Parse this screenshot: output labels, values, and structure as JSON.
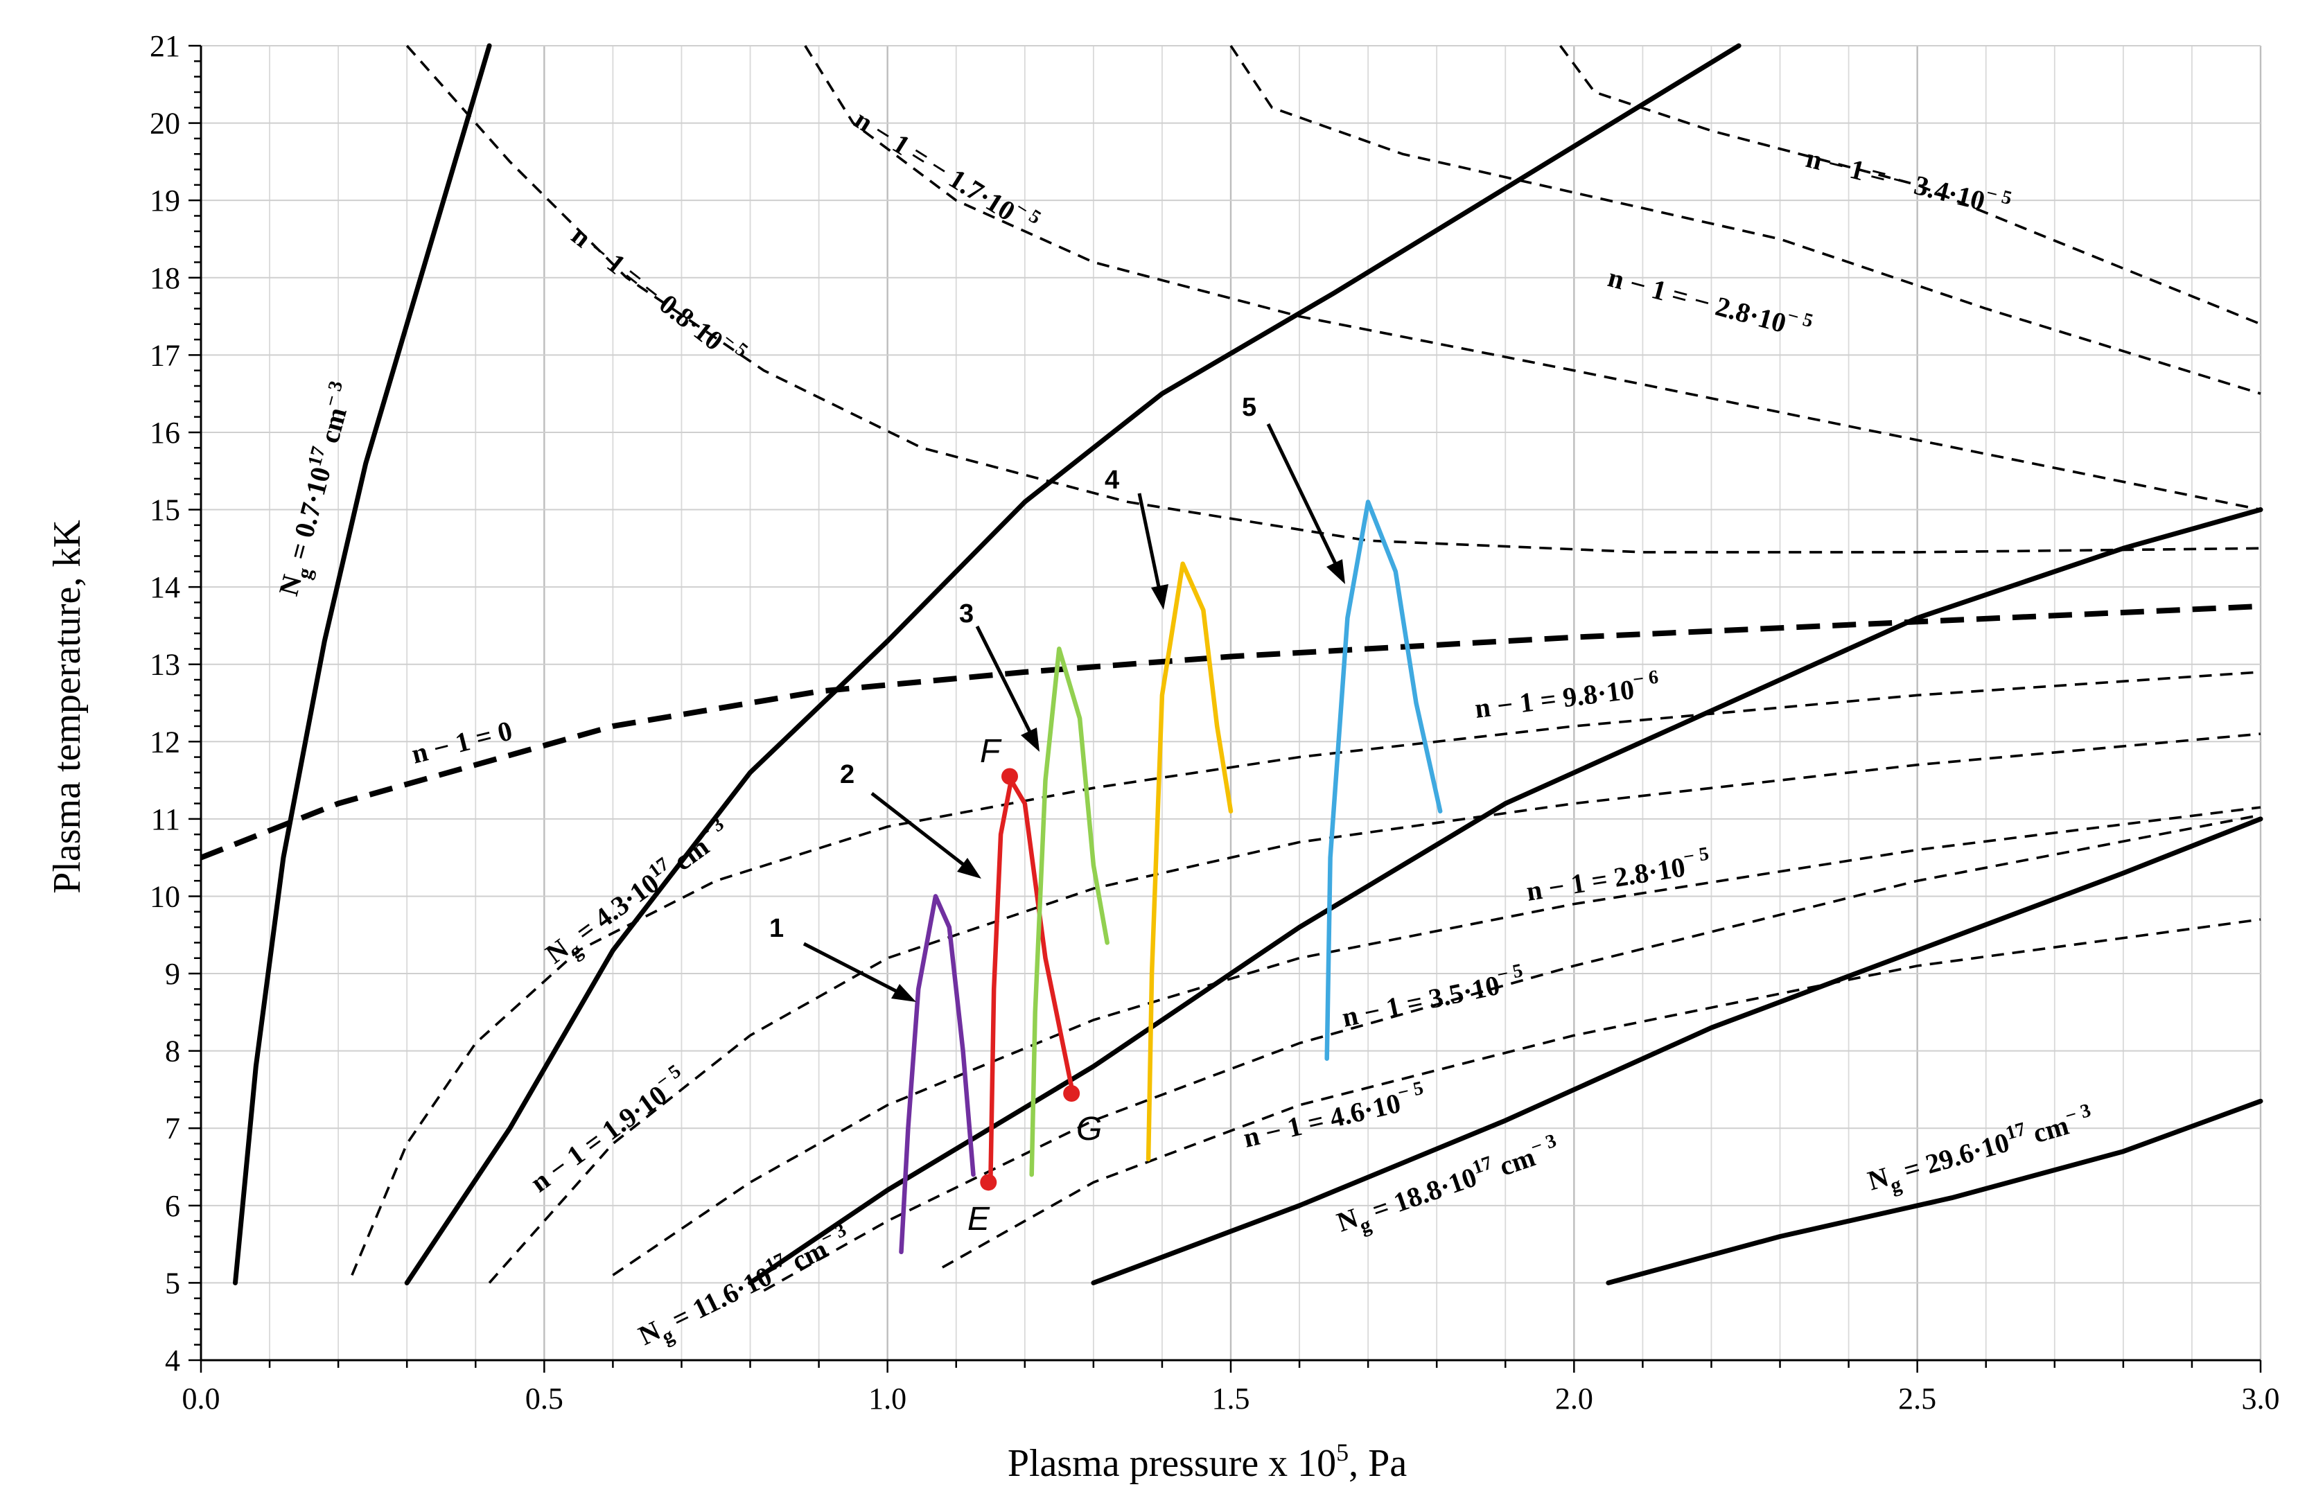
{
  "chart_data": {
    "type": "line",
    "title": "",
    "xlabel": "Plasma pressure x 10",
    "xlabel_sup": "5",
    "xlabel_unit": ", Pa",
    "ylabel": "Plasma temperature, kK",
    "xlim": [
      0.0,
      3.0
    ],
    "ylim": [
      4,
      21
    ],
    "xticks": [
      0.0,
      0.5,
      1.0,
      1.5,
      2.0,
      2.5,
      3.0
    ],
    "xtick_labels": [
      "0.0",
      "0.5",
      "1.0",
      "1.5",
      "2.0",
      "2.5",
      "3.0"
    ],
    "yticks": [
      4,
      5,
      6,
      7,
      8,
      9,
      10,
      11,
      12,
      13,
      14,
      15,
      16,
      17,
      18,
      19,
      20,
      21
    ],
    "ytick_labels": [
      "4",
      "5",
      "6",
      "7",
      "8",
      "9",
      "10",
      "11",
      "12",
      "13",
      "14",
      "15",
      "16",
      "17",
      "18",
      "19",
      "20",
      "21"
    ],
    "grid": true,
    "series": [
      {
        "name": "Ng = 0.7·10^17 cm^-3",
        "style": "solid",
        "color": "#000000",
        "points": [
          [
            0.05,
            5
          ],
          [
            0.08,
            7.8
          ],
          [
            0.12,
            10.5
          ],
          [
            0.18,
            13.3
          ],
          [
            0.24,
            15.6
          ],
          [
            0.32,
            18
          ],
          [
            0.42,
            21
          ]
        ]
      },
      {
        "name": "Ng = 4.3·10^17 cm^-3",
        "style": "solid",
        "color": "#000000",
        "points": [
          [
            0.3,
            5
          ],
          [
            0.45,
            7
          ],
          [
            0.6,
            9.3
          ],
          [
            0.8,
            11.6
          ],
          [
            1.0,
            13.3
          ],
          [
            1.2,
            15.1
          ],
          [
            1.4,
            16.5
          ],
          [
            1.65,
            17.8
          ],
          [
            2.0,
            19.7
          ],
          [
            2.24,
            21
          ]
        ]
      },
      {
        "name": "Ng = 11.6·10^17 cm^-3",
        "style": "solid",
        "color": "#000000",
        "points": [
          [
            0.8,
            5
          ],
          [
            1.0,
            6.2
          ],
          [
            1.3,
            7.8
          ],
          [
            1.6,
            9.6
          ],
          [
            1.9,
            11.2
          ],
          [
            2.2,
            12.4
          ],
          [
            2.5,
            13.6
          ],
          [
            2.8,
            14.5
          ],
          [
            3.0,
            15
          ]
        ]
      },
      {
        "name": "Ng = 18.8·10^17 cm^-3",
        "style": "solid",
        "color": "#000000",
        "points": [
          [
            1.3,
            5
          ],
          [
            1.6,
            6
          ],
          [
            1.9,
            7.1
          ],
          [
            2.2,
            8.3
          ],
          [
            2.5,
            9.3
          ],
          [
            2.8,
            10.3
          ],
          [
            3.0,
            11
          ]
        ]
      },
      {
        "name": "Ng = 29.6·10^17 cm^-3",
        "style": "solid",
        "color": "#000000",
        "points": [
          [
            2.05,
            5
          ],
          [
            2.3,
            5.6
          ],
          [
            2.55,
            6.1
          ],
          [
            2.8,
            6.7
          ],
          [
            3.0,
            7.35
          ]
        ]
      },
      {
        "name": "n-1 = 0",
        "style": "thick-dash",
        "color": "#000000",
        "points": [
          [
            0.0,
            10.5
          ],
          [
            0.2,
            11.2
          ],
          [
            0.4,
            11.7
          ],
          [
            0.6,
            12.2
          ],
          [
            0.9,
            12.65
          ],
          [
            1.2,
            12.9
          ],
          [
            1.5,
            13.1
          ],
          [
            2.0,
            13.35
          ],
          [
            2.5,
            13.55
          ],
          [
            3.0,
            13.75
          ]
        ]
      },
      {
        "name": "n-1 = 9.8·10^-6",
        "style": "dash",
        "color": "#000000",
        "points": [
          [
            0.22,
            5.1
          ],
          [
            0.3,
            6.8
          ],
          [
            0.4,
            8.1
          ],
          [
            0.55,
            9.3
          ],
          [
            0.75,
            10.2
          ],
          [
            1.0,
            10.9
          ],
          [
            1.3,
            11.4
          ],
          [
            1.6,
            11.8
          ],
          [
            2.0,
            12.2
          ],
          [
            2.5,
            12.6
          ],
          [
            3.0,
            12.9
          ]
        ]
      },
      {
        "name": "n-1 = 1.9·10^-5",
        "style": "dash",
        "color": "#000000",
        "points": [
          [
            0.42,
            5
          ],
          [
            0.6,
            6.8
          ],
          [
            0.8,
            8.2
          ],
          [
            1.0,
            9.2
          ],
          [
            1.3,
            10.1
          ],
          [
            1.6,
            10.7
          ],
          [
            2.0,
            11.2
          ],
          [
            2.5,
            11.7
          ],
          [
            3.0,
            12.1
          ]
        ]
      },
      {
        "name": "n-1 = 2.8·10^-5",
        "style": "dash",
        "color": "#000000",
        "points": [
          [
            0.6,
            5.1
          ],
          [
            0.8,
            6.3
          ],
          [
            1.0,
            7.3
          ],
          [
            1.3,
            8.4
          ],
          [
            1.6,
            9.2
          ],
          [
            2.0,
            9.9
          ],
          [
            2.5,
            10.6
          ],
          [
            3.0,
            11.15
          ]
        ]
      },
      {
        "name": "n-1 = 3.5·10^-5",
        "style": "dash",
        "color": "#000000",
        "points": [
          [
            0.82,
            4.9
          ],
          [
            1.0,
            5.8
          ],
          [
            1.3,
            7.1
          ],
          [
            1.6,
            8.1
          ],
          [
            2.0,
            9.1
          ],
          [
            2.5,
            10.2
          ],
          [
            3.0,
            11.05
          ]
        ]
      },
      {
        "name": "n-1 = 4.6·10^-5",
        "style": "dash",
        "color": "#000000",
        "points": [
          [
            1.08,
            5.2
          ],
          [
            1.3,
            6.3
          ],
          [
            1.6,
            7.3
          ],
          [
            2.0,
            8.2
          ],
          [
            2.5,
            9.1
          ],
          [
            3.0,
            9.7
          ]
        ]
      },
      {
        "name": "n-1 = -0.8·10^-5",
        "style": "dash",
        "color": "#000000",
        "points": [
          [
            0.3,
            21
          ],
          [
            0.45,
            19.5
          ],
          [
            0.62,
            18
          ],
          [
            0.82,
            16.8
          ],
          [
            1.05,
            15.8
          ],
          [
            1.35,
            15.1
          ],
          [
            1.7,
            14.6
          ],
          [
            2.1,
            14.45
          ],
          [
            2.5,
            14.45
          ],
          [
            3.0,
            14.5
          ]
        ]
      },
      {
        "name": "n-1 = -1.7·10^-5",
        "style": "dash",
        "color": "#000000",
        "points": [
          [
            0.88,
            21
          ],
          [
            0.95,
            20
          ],
          [
            1.1,
            19
          ],
          [
            1.3,
            18.2
          ],
          [
            1.6,
            17.5
          ],
          [
            2.0,
            16.8
          ],
          [
            2.5,
            15.9
          ],
          [
            3.0,
            15
          ]
        ]
      },
      {
        "name": "n-1 = -2.8·10^-5",
        "style": "dash",
        "color": "#000000",
        "points": [
          [
            1.5,
            21
          ],
          [
            1.56,
            20.2
          ],
          [
            1.75,
            19.6
          ],
          [
            2.0,
            19.1
          ],
          [
            2.3,
            18.5
          ],
          [
            2.6,
            17.6
          ],
          [
            3.0,
            16.5
          ]
        ]
      },
      {
        "name": "n-1 = -3.4·10^-5",
        "style": "dash",
        "color": "#000000",
        "points": [
          [
            1.98,
            21
          ],
          [
            2.03,
            20.4
          ],
          [
            2.2,
            19.9
          ],
          [
            2.5,
            19.2
          ],
          [
            2.75,
            18.3
          ],
          [
            3.0,
            17.4
          ]
        ]
      },
      {
        "name": "1",
        "style": "color",
        "color": "#7030A0",
        "points": [
          [
            1.02,
            5.4
          ],
          [
            1.03,
            7
          ],
          [
            1.045,
            8.8
          ],
          [
            1.07,
            10
          ],
          [
            1.09,
            9.6
          ],
          [
            1.11,
            8
          ],
          [
            1.125,
            6.4
          ]
        ]
      },
      {
        "name": "2",
        "style": "color",
        "color": "#E02020",
        "points": [
          [
            1.15,
            6.3
          ],
          [
            1.155,
            8.8
          ],
          [
            1.165,
            10.8
          ],
          [
            1.18,
            11.5
          ],
          [
            1.2,
            11.2
          ],
          [
            1.23,
            9.2
          ],
          [
            1.27,
            7.45
          ]
        ]
      },
      {
        "name": "3",
        "style": "color",
        "color": "#92D050",
        "points": [
          [
            1.21,
            6.4
          ],
          [
            1.215,
            8.5
          ],
          [
            1.23,
            11.5
          ],
          [
            1.25,
            13.2
          ],
          [
            1.28,
            12.3
          ],
          [
            1.3,
            10.4
          ],
          [
            1.32,
            9.4
          ]
        ]
      },
      {
        "name": "4",
        "style": "color",
        "color": "#F5C000",
        "points": [
          [
            1.38,
            6.6
          ],
          [
            1.385,
            9
          ],
          [
            1.4,
            12.6
          ],
          [
            1.43,
            14.3
          ],
          [
            1.46,
            13.7
          ],
          [
            1.48,
            12.2
          ],
          [
            1.5,
            11.1
          ]
        ]
      },
      {
        "name": "5",
        "style": "color",
        "color": "#3FA9E0",
        "points": [
          [
            1.64,
            7.9
          ],
          [
            1.645,
            10.5
          ],
          [
            1.67,
            13.6
          ],
          [
            1.7,
            15.1
          ],
          [
            1.74,
            14.2
          ],
          [
            1.77,
            12.5
          ],
          [
            1.805,
            11.1
          ]
        ]
      }
    ],
    "markers": [
      {
        "name": "E",
        "x": 1.147,
        "y": 6.3,
        "color": "#E02020"
      },
      {
        "name": "F",
        "x": 1.178,
        "y": 11.55,
        "color": "#E02020"
      },
      {
        "name": "G",
        "x": 1.268,
        "y": 7.45,
        "color": "#E02020"
      }
    ],
    "annotations": [
      {
        "text": "N",
        "sub": "g",
        "mid": " = 0.7·10",
        "sup1": "17",
        "tail": " cm",
        "sup2": "− 3"
      },
      {
        "text": "N",
        "sub": "g",
        "mid": " = 4.3·10",
        "sup1": "17",
        "tail": " cm",
        "sup2": "− 3"
      },
      {
        "text": "N",
        "sub": "g",
        "mid": " = 11.6·10",
        "sup1": "17",
        "tail": " cm",
        "sup2": "− 3"
      },
      {
        "text": "N",
        "sub": "g",
        "mid": " = 18.8·10",
        "sup1": "17",
        "tail": " cm",
        "sup2": "− 3"
      },
      {
        "text": "N",
        "sub": "g",
        "mid": " = 29.6·10",
        "sup1": "17",
        "tail": " cm",
        "sup2": "− 3"
      },
      {
        "text": "n − 1 = 0",
        "sup": ""
      },
      {
        "text": "n − 1 = 9.8·10",
        "sup": "− 6"
      },
      {
        "text": "n − 1 = 1.9·10",
        "sup": "− 5"
      },
      {
        "text": "n − 1 = 2.8·10",
        "sup": "− 5"
      },
      {
        "text": "n − 1 = 3.5·10",
        "sup": "− 5"
      },
      {
        "text": "n − 1 = 4.6·10",
        "sup": "− 5"
      },
      {
        "text": "n − 1 = − 0.8·10",
        "sup": "− 5"
      },
      {
        "text": "n − 1 = − 1.7·10",
        "sup": "− 5"
      },
      {
        "text": "n − 1 = − 2.8·10",
        "sup": "− 5"
      },
      {
        "text": "n − 1 = − 3.4·10",
        "sup": "− 5"
      }
    ],
    "curve_labels": [
      "1",
      "2",
      "3",
      "4",
      "5"
    ],
    "point_labels": [
      "E",
      "F",
      "G"
    ]
  }
}
